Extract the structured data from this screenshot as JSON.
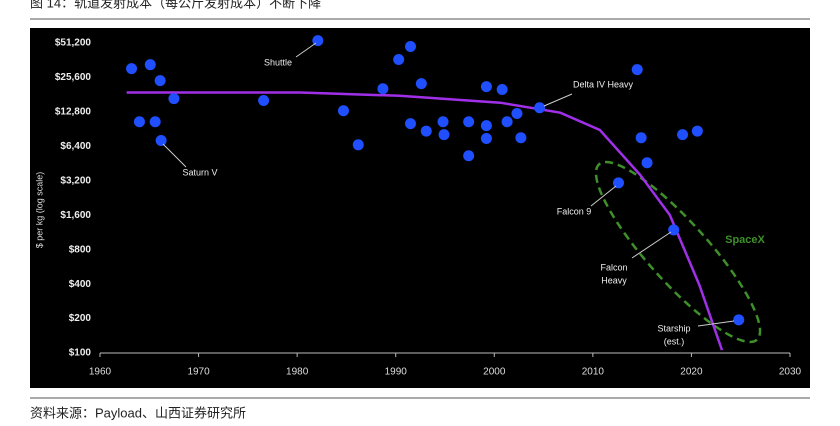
{
  "header": {
    "title": "图 14：轨道发射成本（每公斤发射成本）不断下降"
  },
  "chart_data": {
    "type": "scatter",
    "ylabel": "$ per kg (log scale)",
    "xlim": [
      1960,
      2030
    ],
    "xticks": [
      1960,
      1970,
      1980,
      1990,
      2000,
      2010,
      2020,
      2030
    ],
    "ylim": [
      100,
      51200
    ],
    "ylog": true,
    "yticks": [
      {
        "value": 100,
        "label": "$100"
      },
      {
        "value": 200,
        "label": "$200"
      },
      {
        "value": 400,
        "label": "$400"
      },
      {
        "value": 800,
        "label": "$800"
      },
      {
        "value": 1600,
        "label": "$1,600"
      },
      {
        "value": 3200,
        "label": "$3,200"
      },
      {
        "value": 6400,
        "label": "$6,400"
      },
      {
        "value": 12800,
        "label": "$12,800"
      },
      {
        "value": 25600,
        "label": "$25,600"
      },
      {
        "value": 51200,
        "label": "$51,200"
      }
    ],
    "series": [
      {
        "type": "scatter",
        "color": "#1f4fff",
        "x": [
          1963.2,
          1965.1,
          1966.1,
          1967.5,
          1964,
          1965.6,
          1966.2,
          1976.6,
          1982.1,
          1984.7,
          1986.2,
          1988.7,
          1990.3,
          1991.5,
          1992.6,
          1991.5,
          1993.1,
          1994.8,
          1994.9,
          1997.4,
          1997.4,
          1999.2,
          1999.2,
          1999.2,
          2000.8,
          2001.3,
          2002.3,
          2002.7,
          2004.6,
          2014.5,
          2014.9,
          2015.5,
          2019.1,
          2020.6,
          2012.6,
          2018.2,
          2024.8
        ],
        "values": [
          30600,
          33100,
          24000,
          16700,
          10500,
          10500,
          7200,
          16100,
          53700,
          13100,
          6600,
          20400,
          36700,
          47700,
          22600,
          10100,
          8700,
          10500,
          8100,
          10500,
          5300,
          21300,
          9700,
          7500,
          20100,
          10500,
          12400,
          7600,
          13900,
          30000,
          7600,
          4600,
          8100,
          8700,
          3070,
          1190,
          195
        ]
      },
      {
        "type": "line",
        "color": "#a030e8",
        "x": [
          1962.7,
          1980.3,
          1990.4,
          2000.6,
          2006.7,
          2010.7,
          2014.8,
          2017.8,
          2020.8,
          2023.1
        ],
        "values": [
          18900,
          18900,
          17700,
          15400,
          12600,
          8900,
          3600,
          1610,
          394,
          106
        ]
      }
    ],
    "annotations": [
      [
        "Shuttle"
      ],
      [
        "Saturn V"
      ],
      [
        "Delta IV Heavy"
      ],
      [
        "Falcon 9"
      ],
      [
        "Falcon",
        "Heavy"
      ],
      [
        "Starship",
        "(est.)"
      ]
    ],
    "group_label": "SpaceX"
  },
  "source": "资料来源：Payload、山西证券研究所"
}
